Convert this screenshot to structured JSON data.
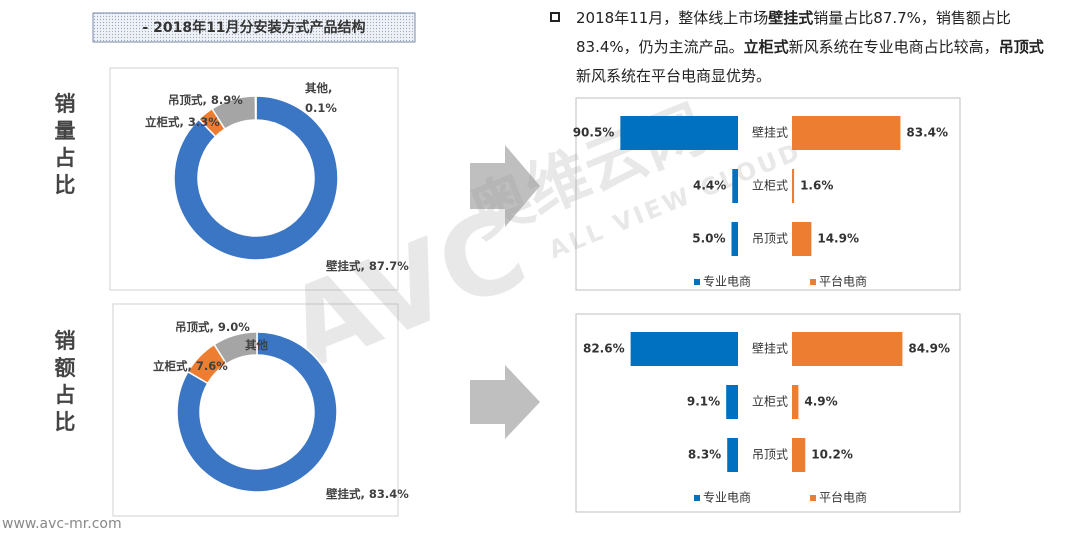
{
  "title": "- 2018年11月分安装方式产品结构",
  "side_labels": [
    "销量占比",
    "销额占比"
  ],
  "bullet": [
    {
      "text": "2018年11月，整体线上市场",
      "bold": false
    },
    {
      "text": "壁挂式",
      "bold": true
    },
    {
      "text": "销量占比87.7%，销售额占比83.4%，仍为主流产品。",
      "bold": false
    },
    {
      "text": "立柜式",
      "bold": true
    },
    {
      "text": "新风系统在专业电商占比较高，",
      "bold": false
    },
    {
      "text": "吊顶式",
      "bold": true
    },
    {
      "text": "新风系统在平台电商显优势。",
      "bold": false
    }
  ],
  "watermark": [
    "AVC",
    "奥维云网",
    "ALL VIEW CLOUD"
  ],
  "url": "www.avc-mr.com",
  "chart_data": [
    {
      "type": "donut",
      "categories": [
        "壁挂式,",
        "立柜式,",
        "吊顶式,",
        "其他,"
      ],
      "values": [
        87.7,
        3.3,
        8.9,
        0.1
      ],
      "value_labels": [
        "87.7%",
        "3.3%",
        "8.9%",
        "0.1%"
      ],
      "colors": [
        "#3a76c4",
        "#ed7d31",
        "#a5a5a5",
        "#5b9bd5"
      ]
    },
    {
      "type": "bar",
      "categories": [
        "壁挂式",
        "立柜式",
        "吊顶式"
      ],
      "series": [
        {
          "name": "专业电商",
          "color": "#0070c0",
          "values": [
            90.5,
            4.4,
            5.0
          ],
          "value_labels": [
            "90.5%",
            "4.4%",
            "5.0%"
          ]
        },
        {
          "name": "平台电商",
          "color": "#ed7d31",
          "values": [
            83.4,
            1.6,
            14.9
          ],
          "value_labels": [
            "83.4%",
            "1.6%",
            "14.9%"
          ]
        }
      ]
    },
    {
      "type": "donut",
      "categories": [
        "壁挂式,",
        "立柜式,",
        "吊顶式,",
        "其他"
      ],
      "values": [
        83.4,
        7.6,
        9.0,
        0
      ],
      "value_labels": [
        "83.4%",
        "7.6%",
        "9.0%",
        null
      ],
      "colors": [
        "#3a76c4",
        "#ed7d31",
        "#a5a5a5",
        "#5b9bd5"
      ]
    },
    {
      "type": "bar",
      "categories": [
        "壁挂式",
        "立柜式",
        "吊顶式"
      ],
      "series": [
        {
          "name": "专业电商",
          "color": "#0070c0",
          "values": [
            82.6,
            9.1,
            8.3
          ],
          "value_labels": [
            "82.6%",
            "9.1%",
            "8.3%"
          ]
        },
        {
          "name": "平台电商",
          "color": "#ed7d31",
          "values": [
            84.9,
            4.9,
            10.2
          ],
          "value_labels": [
            "84.9%",
            "4.9%",
            "10.2%"
          ]
        }
      ]
    }
  ]
}
